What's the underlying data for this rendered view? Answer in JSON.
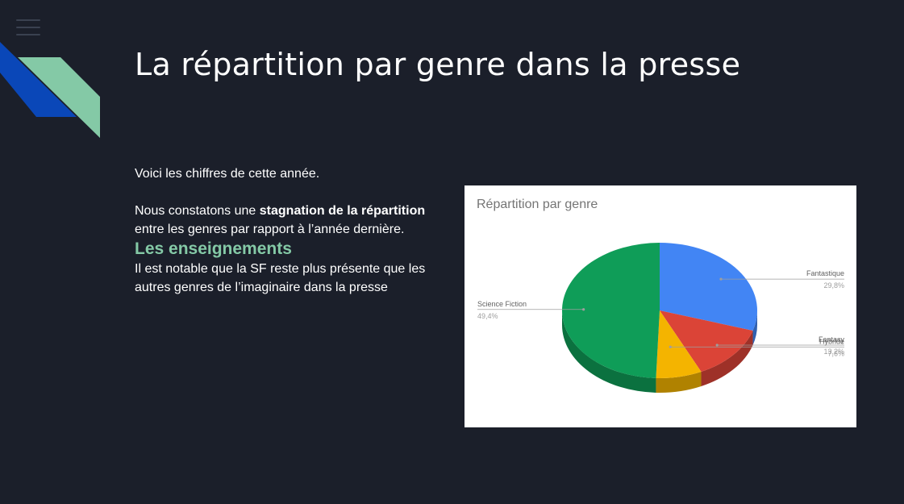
{
  "slide": {
    "title": "La répartition par genre dans la presse",
    "intro": "Voici les chiffres de cette année.",
    "observation_prefix": "Nous constatons une ",
    "observation_bold": "stagnation de la répartition",
    "observation_suffix": "entre les genres par rapport à l’année dernière.",
    "lessons_heading": "Les enseignements",
    "lessons_text": "Il est notable que la SF reste plus présente que les autres genres de l’imaginaire dans la presse"
  },
  "colors": {
    "background": "#1b1f2a",
    "accent_green": "#84c9a6",
    "accent_blue": "#0a47b8"
  },
  "chart_data": {
    "type": "pie",
    "title": "Répartition par genre",
    "style": "3d",
    "slices": [
      {
        "label": "Fantastique",
        "value": 29.8,
        "display": "29,8%",
        "color": "#4285f4"
      },
      {
        "label": "Fantasy",
        "value": 13.2,
        "display": "13,2%",
        "color": "#db4437"
      },
      {
        "label": "Hybride",
        "value": 7.6,
        "display": "7,6%",
        "color": "#f4b400"
      },
      {
        "label": "Science Fiction",
        "value": 49.4,
        "display": "49,4%",
        "color": "#0f9d58"
      }
    ]
  }
}
